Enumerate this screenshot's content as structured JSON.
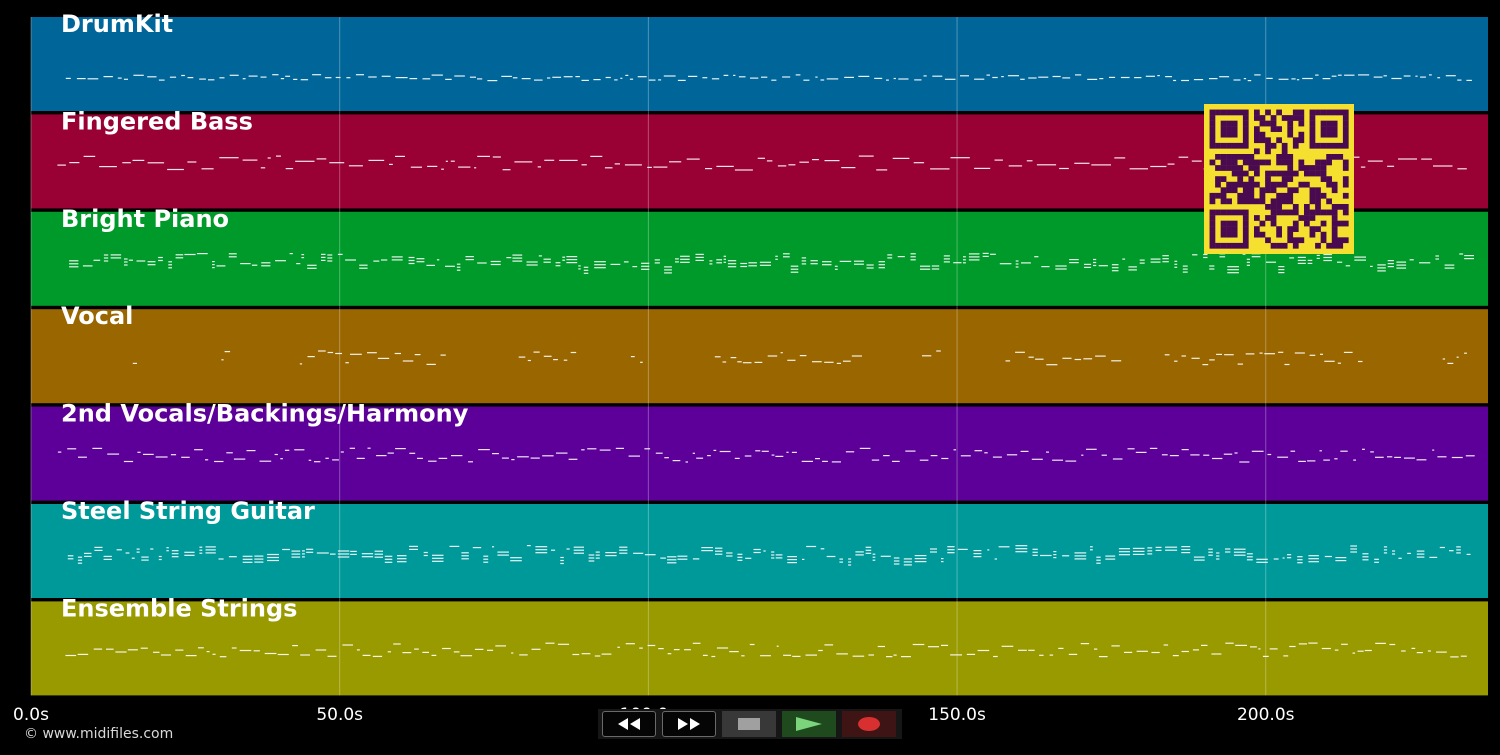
{
  "tracks": [
    {
      "name": "DrumKit",
      "color": "#006699"
    },
    {
      "name": "Fingered Bass",
      "color": "#990033"
    },
    {
      "name": "Bright Piano",
      "color": "#009a2a"
    },
    {
      "name": "Vocal",
      "color": "#996600"
    },
    {
      "name": "2nd Vocals/Backings/Harmony",
      "color": "#5c0099"
    },
    {
      "name": "Steel String Guitar",
      "color": "#00999a"
    },
    {
      "name": "Ensemble Strings",
      "color": "#999900"
    }
  ],
  "timeline": {
    "ticks": [
      "0.0s",
      "50.0s",
      "100.0s",
      "150.0s",
      "200.0s"
    ],
    "max_seconds": 236
  },
  "copyright": "© www.midifiles.com",
  "transport": {
    "rewind_icon": "rewind-icon",
    "fast_forward_icon": "fast-forward-icon",
    "stop_icon": "stop-icon",
    "play_icon": "play-icon",
    "record_icon": "record-icon"
  },
  "qr_code": {
    "foreground": "#4a0a50",
    "background": "#f5e030"
  }
}
